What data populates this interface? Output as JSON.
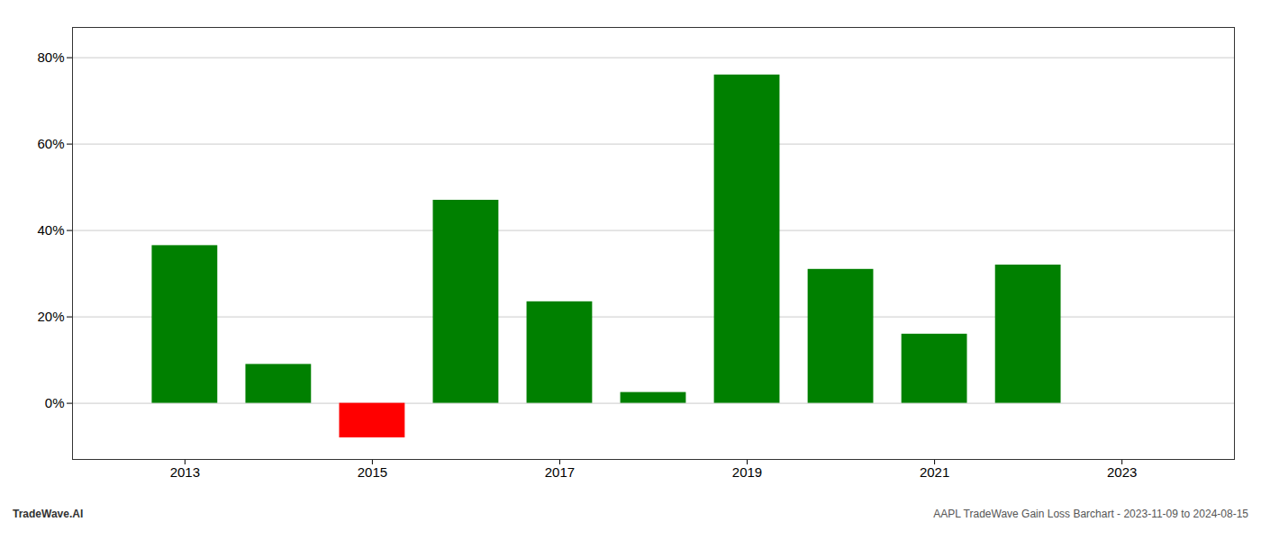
{
  "chart_data": {
    "type": "bar",
    "x": [
      2013,
      2014,
      2015,
      2016,
      2017,
      2018,
      2019,
      2020,
      2021,
      2022
    ],
    "values": [
      0.365,
      0.09,
      -0.08,
      0.47,
      0.235,
      0.025,
      0.76,
      0.31,
      0.16,
      0.32
    ],
    "colors": [
      "#008000",
      "#008000",
      "#ff0000",
      "#008000",
      "#008000",
      "#008000",
      "#008000",
      "#008000",
      "#008000",
      "#008000"
    ],
    "xlim": [
      2011.8,
      2024.2
    ],
    "xticks": [
      2013,
      2015,
      2017,
      2019,
      2021,
      2023
    ],
    "ylim": [
      -0.13,
      0.87
    ],
    "yticks": [
      {
        "value": 0,
        "label": "0%"
      },
      {
        "value": 0.2,
        "label": "20%"
      },
      {
        "value": 0.4,
        "label": "40%"
      },
      {
        "value": 0.6,
        "label": "60%"
      },
      {
        "value": 0.8,
        "label": "80%"
      }
    ],
    "grid": true,
    "annotations": [
      "TradeWave.AI",
      "AAPL TradeWave Gain Loss Barchart - 2023-11-09 to 2024-08-15"
    ]
  }
}
